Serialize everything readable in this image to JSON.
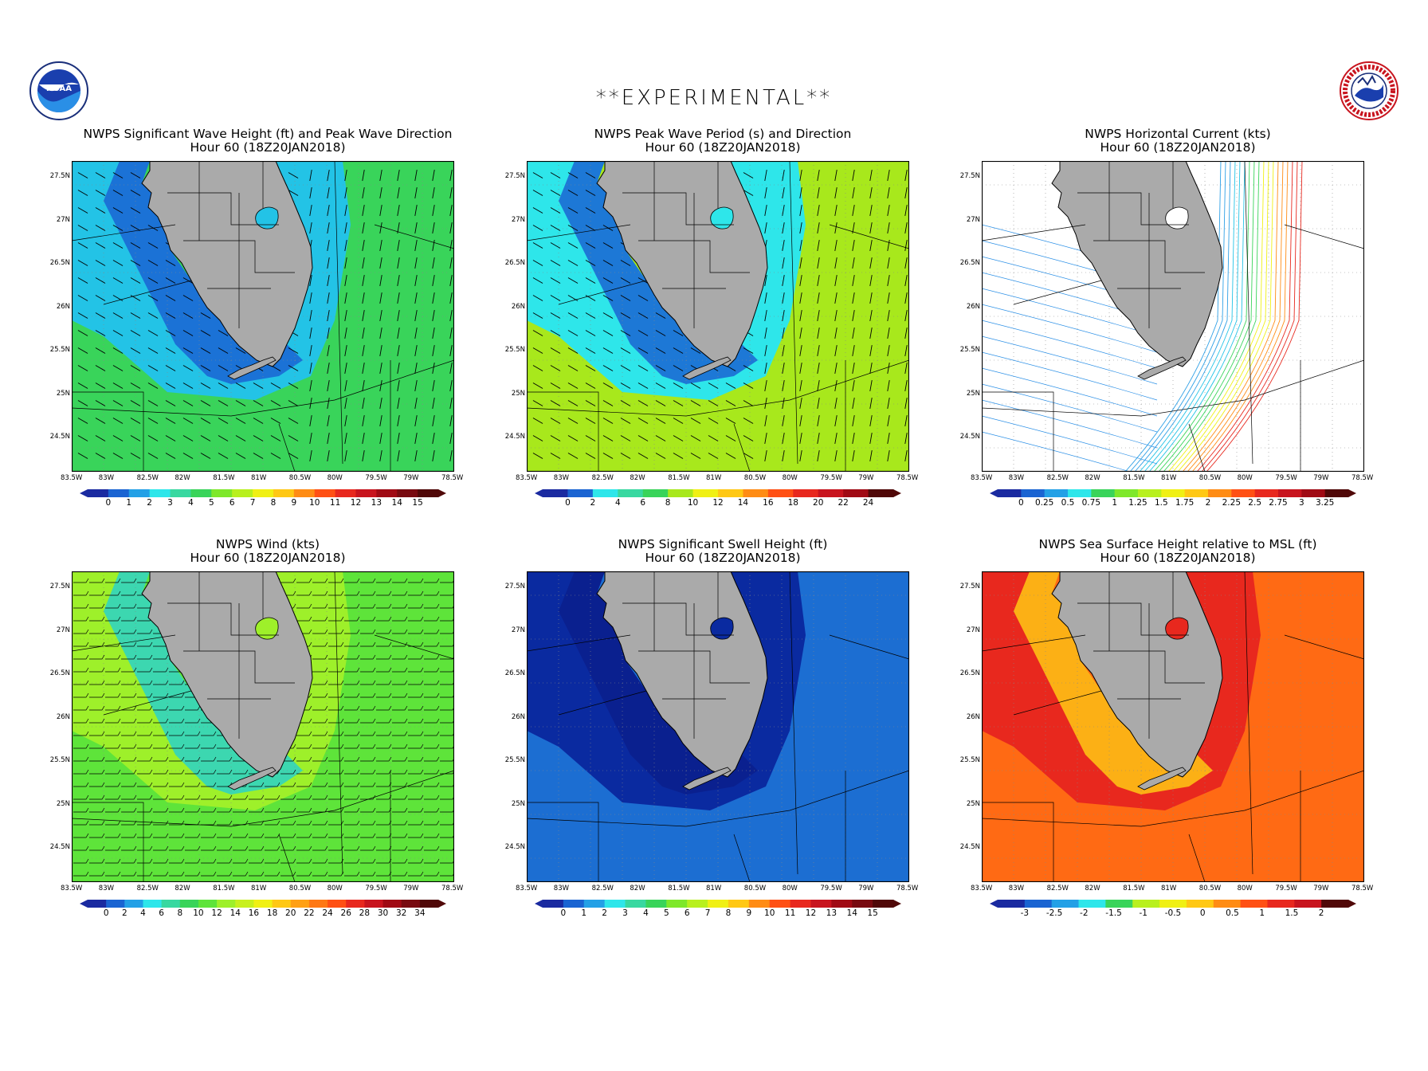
{
  "banner": "**EXPERIMENTAL**",
  "logos": {
    "left": "noaa-logo",
    "right": "nws-logo",
    "left_text": "NOAA"
  },
  "lat_labels": [
    "27.5N",
    "27N",
    "26.5N",
    "26N",
    "25.5N",
    "25N",
    "24.5N"
  ],
  "lon_labels": [
    "83.5W",
    "83W",
    "82.5W",
    "82W",
    "81.5W",
    "81W",
    "80.5W",
    "80W",
    "79.5W",
    "79W",
    "78.5W"
  ],
  "panels": [
    {
      "id": "sig-wave-height",
      "title": "NWPS Significant Wave Height (ft) and Peak Wave Direction",
      "subtitle": "Hour 60 (18Z20JAN2018)",
      "overlay": "arrows",
      "colorbar": {
        "labels": [
          "0",
          "1",
          "2",
          "3",
          "4",
          "5",
          "6",
          "7",
          "8",
          "9",
          "10",
          "11",
          "12",
          "13",
          "14",
          "15"
        ]
      },
      "colors": {
        "sea": "#39d45a",
        "near": "#23c3e6",
        "coast": "#1a64d2"
      }
    },
    {
      "id": "peak-wave-period",
      "title": "NWPS Peak Wave Period (s) and Direction",
      "subtitle": "Hour 60 (18Z20JAN2018)",
      "overlay": "arrows",
      "colorbar": {
        "labels": [
          "0",
          "2",
          "4",
          "6",
          "8",
          "10",
          "12",
          "14",
          "16",
          "18",
          "20",
          "22",
          "24"
        ]
      },
      "colors": {
        "sea": "#a8e81c",
        "near": "#2ee6ea",
        "coast": "#1a64d2"
      }
    },
    {
      "id": "horizontal-current",
      "title": "NWPS Horizontal Current (kts)",
      "subtitle": "Hour 60 (18Z20JAN2018)",
      "overlay": "streamlines",
      "colorbar": {
        "labels": [
          "0",
          "0.25",
          "0.5",
          "0.75",
          "1",
          "1.25",
          "1.5",
          "1.75",
          "2",
          "2.25",
          "2.5",
          "2.75",
          "3",
          "3.25"
        ]
      },
      "colors": {
        "sea": "#ffffff",
        "near": "#ffffff",
        "coast": "#ffffff"
      }
    },
    {
      "id": "wind",
      "title": "NWPS Wind (kts)",
      "subtitle": "Hour 60 (18Z20JAN2018)",
      "overlay": "barbs",
      "colorbar": {
        "labels": [
          "0",
          "2",
          "4",
          "6",
          "8",
          "10",
          "12",
          "14",
          "16",
          "18",
          "20",
          "22",
          "24",
          "26",
          "28",
          "30",
          "32",
          "34"
        ]
      },
      "colors": {
        "sea": "#5ee43a",
        "near": "#9ef02a",
        "coast": "#2ad2c8"
      }
    },
    {
      "id": "swell-height",
      "title": "NWPS Significant Swell Height (ft)",
      "subtitle": "Hour 60 (18Z20JAN2018)",
      "overlay": "none",
      "colorbar": {
        "labels": [
          "0",
          "1",
          "2",
          "3",
          "4",
          "5",
          "6",
          "7",
          "8",
          "9",
          "10",
          "11",
          "12",
          "13",
          "14",
          "15"
        ]
      },
      "colors": {
        "sea": "#1c6ed2",
        "near": "#0a2aa0",
        "coast": "#0a1e8c"
      }
    },
    {
      "id": "sea-surface-height",
      "title": "NWPS Sea Surface Height relative to MSL (ft)",
      "subtitle": "Hour 60 (18Z20JAN2018)",
      "overlay": "none",
      "colorbar": {
        "labels": [
          "-3",
          "-2.5",
          "-2",
          "-1.5",
          "-1",
          "-0.5",
          "0",
          "0.5",
          "1",
          "1.5",
          "2"
        ]
      },
      "colors": {
        "sea": "#ff6a14",
        "near": "#e8281e",
        "coast": "#ffc814"
      }
    }
  ]
}
